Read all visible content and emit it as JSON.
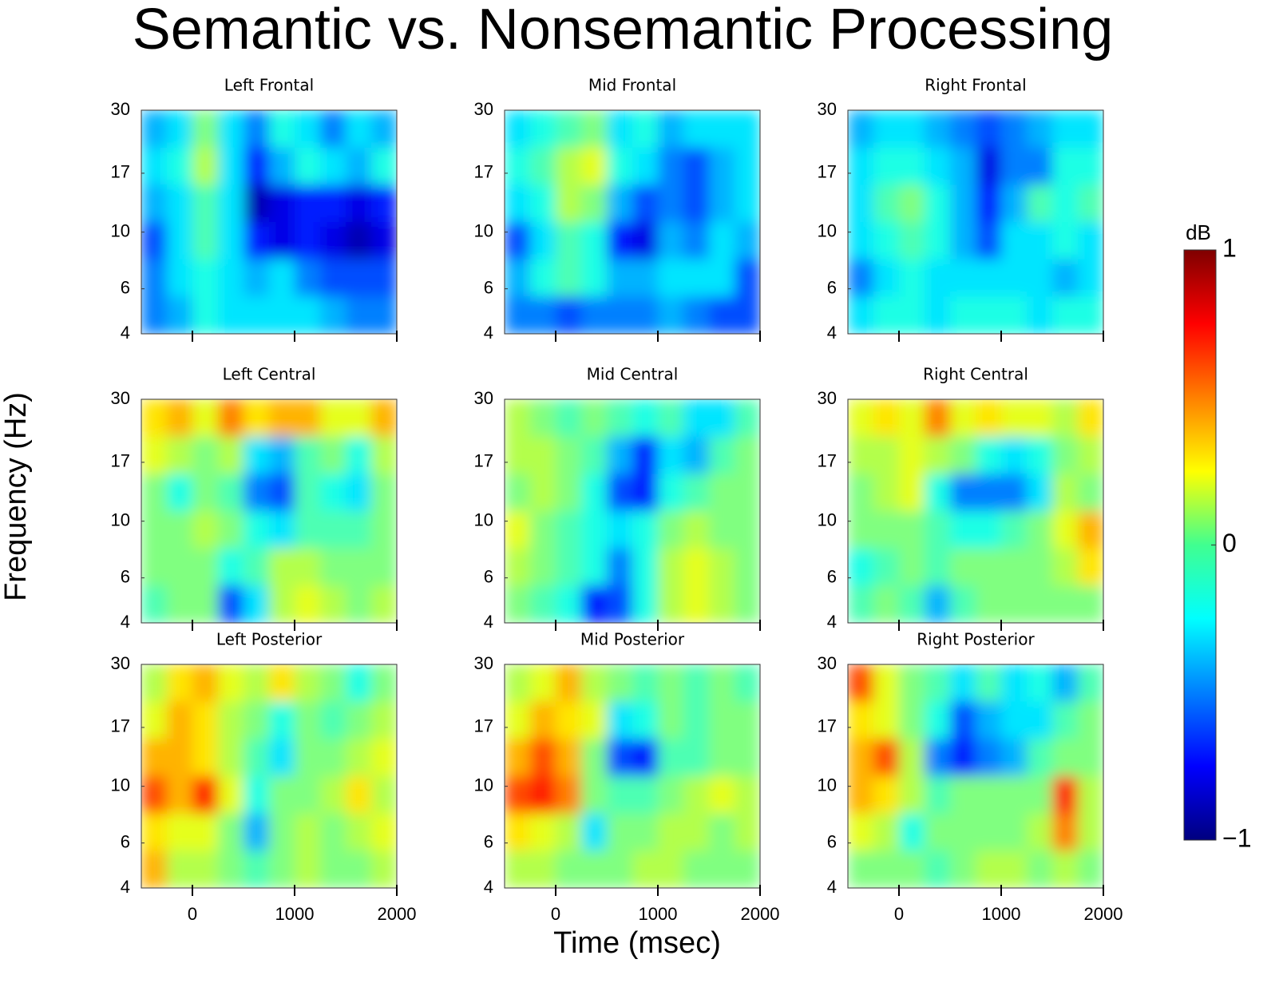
{
  "title": "Semantic vs. Nonsemantic Processing",
  "xlabel": "Time (msec)",
  "ylabel": "Frequency (Hz)",
  "colorbar": {
    "label": "dB",
    "lim": [
      -1,
      1
    ],
    "ticks": [
      {
        "value": -1,
        "label": "−1"
      },
      0,
      1
    ]
  },
  "chart_data": [
    {
      "type": "heatmap",
      "title": "Left Frontal",
      "xlim": [
        -500,
        2000
      ],
      "xticks": [
        0,
        1000,
        2000
      ],
      "ylim": [
        4,
        30
      ],
      "yticks": [
        4,
        6,
        10,
        17,
        30
      ],
      "ylog": true,
      "values": [
        [
          -0.4,
          -0.3,
          0,
          -0.3,
          -0.5,
          -0.2,
          -0.3,
          -0.5,
          -0.3,
          -0.4
        ],
        [
          -0.3,
          -0.2,
          0.1,
          -0.3,
          -0.7,
          -0.4,
          -0.2,
          -0.3,
          -0.4,
          -0.2
        ],
        [
          -0.4,
          -0.3,
          -0.1,
          -0.3,
          -0.9,
          -0.8,
          -0.7,
          -0.7,
          -0.8,
          -0.7
        ],
        [
          -0.6,
          -0.3,
          -0.1,
          -0.3,
          -0.7,
          -0.8,
          -0.7,
          -0.8,
          -0.9,
          -0.8
        ],
        [
          -0.5,
          -0.3,
          -0.2,
          -0.3,
          -0.4,
          -0.3,
          -0.5,
          -0.6,
          -0.6,
          -0.6
        ],
        [
          -0.5,
          -0.4,
          -0.2,
          -0.3,
          -0.3,
          -0.3,
          -0.3,
          -0.4,
          -0.5,
          -0.5
        ]
      ]
    },
    {
      "type": "heatmap",
      "title": "Mid Frontal",
      "xlim": [
        -500,
        2000
      ],
      "xticks": [
        0,
        1000,
        2000
      ],
      "ylim": [
        4,
        30
      ],
      "yticks": [
        4,
        6,
        10,
        17,
        30
      ],
      "ylog": true,
      "values": [
        [
          -0.3,
          -0.2,
          -0.1,
          0,
          -0.3,
          -0.2,
          -0.4,
          -0.3,
          -0.3,
          -0.3
        ],
        [
          -0.2,
          -0.1,
          0.1,
          0.2,
          -0.2,
          -0.3,
          -0.5,
          -0.6,
          -0.4,
          -0.3
        ],
        [
          -0.3,
          -0.2,
          0.1,
          0,
          -0.4,
          -0.6,
          -0.5,
          -0.6,
          -0.4,
          -0.3
        ],
        [
          -0.6,
          -0.3,
          -0.1,
          -0.2,
          -0.7,
          -0.8,
          -0.4,
          -0.5,
          -0.3,
          -0.4
        ],
        [
          -0.4,
          -0.2,
          -0.1,
          -0.2,
          -0.4,
          -0.4,
          -0.3,
          -0.3,
          -0.3,
          -0.6
        ],
        [
          -0.5,
          -0.5,
          -0.6,
          -0.5,
          -0.5,
          -0.5,
          -0.4,
          -0.5,
          -0.6,
          -0.6
        ]
      ]
    },
    {
      "type": "heatmap",
      "title": "Right Frontal",
      "xlim": [
        -500,
        2000
      ],
      "xticks": [
        0,
        1000,
        2000
      ],
      "ylim": [
        4,
        30
      ],
      "yticks": [
        4,
        6,
        10,
        17,
        30
      ],
      "ylog": true,
      "values": [
        [
          -0.4,
          -0.3,
          -0.3,
          -0.4,
          -0.5,
          -0.6,
          -0.5,
          -0.4,
          -0.3,
          -0.3
        ],
        [
          -0.3,
          -0.2,
          -0.2,
          -0.3,
          -0.4,
          -0.8,
          -0.5,
          -0.5,
          -0.2,
          -0.2
        ],
        [
          -0.3,
          -0.1,
          0,
          -0.2,
          -0.4,
          -0.7,
          -0.4,
          -0.1,
          -0.2,
          -0.1
        ],
        [
          -0.3,
          -0.2,
          -0.1,
          -0.2,
          -0.4,
          -0.6,
          -0.3,
          -0.3,
          -0.2,
          -0.3
        ],
        [
          -0.5,
          -0.3,
          -0.2,
          -0.3,
          -0.3,
          -0.3,
          -0.3,
          -0.3,
          -0.4,
          -0.3
        ],
        [
          -0.3,
          -0.2,
          -0.2,
          -0.3,
          -0.2,
          -0.2,
          -0.2,
          -0.3,
          -0.2,
          -0.2
        ]
      ]
    },
    {
      "type": "heatmap",
      "title": "Left Central",
      "xlim": [
        -500,
        2000
      ],
      "xticks": [
        0,
        1000,
        2000
      ],
      "ylim": [
        4,
        30
      ],
      "yticks": [
        4,
        6,
        10,
        17,
        30
      ],
      "ylog": true,
      "values": [
        [
          0.3,
          0.4,
          0.2,
          0.5,
          0.3,
          0.4,
          0.4,
          0.2,
          0.2,
          0.4
        ],
        [
          0.2,
          0.1,
          0,
          0.1,
          -0.3,
          -0.4,
          -0.1,
          0,
          -0.2,
          0.1
        ],
        [
          0,
          -0.2,
          0,
          -0.1,
          -0.5,
          -0.6,
          -0.1,
          -0.2,
          -0.3,
          0
        ],
        [
          0,
          0,
          0.1,
          0,
          -0.2,
          -0.3,
          -0.1,
          -0.1,
          -0.1,
          0
        ],
        [
          0,
          0,
          0,
          -0.2,
          -0.1,
          0.1,
          0.1,
          0,
          0,
          0
        ],
        [
          -0.1,
          0,
          0,
          -0.6,
          -0.3,
          0.1,
          0.2,
          0.1,
          0,
          0.1
        ]
      ]
    },
    {
      "type": "heatmap",
      "title": "Mid Central",
      "xlim": [
        -500,
        2000
      ],
      "xticks": [
        0,
        1000,
        2000
      ],
      "ylim": [
        4,
        30
      ],
      "yticks": [
        4,
        6,
        10,
        17,
        30
      ],
      "ylog": true,
      "values": [
        [
          0.1,
          0,
          -0.1,
          0,
          -0.1,
          -0.2,
          -0.1,
          -0.3,
          -0.3,
          -0.1
        ],
        [
          0.1,
          0.1,
          0,
          -0.1,
          -0.4,
          -0.7,
          -0.3,
          -0.4,
          -0.1,
          0
        ],
        [
          0,
          0.1,
          0,
          -0.2,
          -0.6,
          -0.7,
          -0.2,
          -0.1,
          0,
          0
        ],
        [
          0.2,
          0,
          -0.1,
          -0.2,
          -0.3,
          -0.2,
          0,
          0.1,
          0,
          0
        ],
        [
          0.1,
          0,
          -0.1,
          -0.2,
          -0.5,
          -0.2,
          0.1,
          0.2,
          0.1,
          0
        ],
        [
          0,
          -0.1,
          -0.2,
          -0.7,
          -0.6,
          -0.2,
          0.1,
          0.2,
          0.1,
          0
        ]
      ]
    },
    {
      "type": "heatmap",
      "title": "Right Central",
      "xlim": [
        -500,
        2000
      ],
      "xticks": [
        0,
        1000,
        2000
      ],
      "ylim": [
        4,
        30
      ],
      "yticks": [
        4,
        6,
        10,
        17,
        30
      ],
      "ylog": true,
      "values": [
        [
          0.2,
          0.3,
          0.2,
          0.5,
          0.2,
          0.3,
          0.2,
          0.2,
          0.1,
          0.3
        ],
        [
          0.1,
          0.1,
          0.2,
          0.1,
          0,
          -0.2,
          -0.3,
          -0.2,
          0,
          0.1
        ],
        [
          0,
          0.1,
          0.2,
          -0.2,
          -0.5,
          -0.5,
          -0.5,
          -0.3,
          0.1,
          0
        ],
        [
          0,
          0,
          0,
          -0.1,
          -0.2,
          -0.2,
          -0.1,
          0,
          0.2,
          0.4
        ],
        [
          -0.2,
          -0.1,
          0,
          -0.1,
          0,
          0,
          0,
          0,
          0.1,
          0.3
        ],
        [
          -0.1,
          0,
          -0.1,
          -0.4,
          -0.1,
          0,
          0,
          0,
          0,
          0
        ]
      ]
    },
    {
      "type": "heatmap",
      "title": "Left Posterior",
      "xlim": [
        -500,
        2000
      ],
      "xticks": [
        0,
        1000,
        2000
      ],
      "ylim": [
        4,
        30
      ],
      "yticks": [
        4,
        6,
        10,
        17,
        30
      ],
      "ylog": true,
      "values": [
        [
          0.1,
          0.3,
          0.4,
          0.2,
          0.1,
          0.3,
          0.1,
          0,
          -0.2,
          0
        ],
        [
          0.2,
          0.4,
          0.3,
          0.1,
          0,
          -0.2,
          0,
          -0.1,
          0,
          0.1
        ],
        [
          0.4,
          0.4,
          0.3,
          0.1,
          -0.1,
          -0.3,
          0,
          0,
          0.1,
          0.2
        ],
        [
          0.6,
          0.4,
          0.7,
          0.2,
          -0.2,
          0,
          0,
          0.1,
          0.3,
          0.1
        ],
        [
          0.3,
          0.2,
          0.2,
          0,
          -0.4,
          0,
          0.1,
          0,
          0.1,
          0.2
        ],
        [
          0.4,
          0.1,
          0.1,
          0,
          -0.1,
          0,
          0.1,
          0,
          0,
          0.1
        ]
      ]
    },
    {
      "type": "heatmap",
      "title": "Mid Posterior",
      "xlim": [
        -500,
        2000
      ],
      "xticks": [
        0,
        1000,
        2000
      ],
      "ylim": [
        4,
        30
      ],
      "yticks": [
        4,
        6,
        10,
        17,
        30
      ],
      "ylog": true,
      "values": [
        [
          0.1,
          0.2,
          0.4,
          0.1,
          0,
          -0.1,
          0,
          -0.1,
          0,
          -0.1
        ],
        [
          0.2,
          0.4,
          0.3,
          0.2,
          -0.3,
          -0.2,
          0,
          -0.1,
          0,
          0
        ],
        [
          0.4,
          0.6,
          0.4,
          0,
          -0.6,
          -0.7,
          -0.1,
          -0.1,
          0,
          0
        ],
        [
          0.6,
          0.7,
          0.5,
          0,
          -0.1,
          -0.1,
          0,
          0.1,
          0.2,
          0.1
        ],
        [
          0.3,
          0.2,
          0.1,
          -0.3,
          0,
          0,
          0.1,
          0.1,
          0,
          0.1
        ],
        [
          0.1,
          0.1,
          0,
          0,
          0,
          0.1,
          0.1,
          0,
          0,
          0
        ]
      ]
    },
    {
      "type": "heatmap",
      "title": "Right Posterior",
      "xlim": [
        -500,
        2000
      ],
      "xticks": [
        0,
        1000,
        2000
      ],
      "ylim": [
        4,
        30
      ],
      "yticks": [
        4,
        6,
        10,
        17,
        30
      ],
      "ylog": true,
      "values": [
        [
          0.6,
          0.2,
          0,
          -0.1,
          -0.3,
          -0.1,
          -0.3,
          -0.2,
          -0.4,
          -0.1
        ],
        [
          0.3,
          0.2,
          0,
          -0.2,
          -0.6,
          -0.4,
          -0.3,
          -0.3,
          -0.1,
          0
        ],
        [
          0.4,
          0.6,
          0.1,
          -0.5,
          -0.7,
          -0.5,
          -0.4,
          -0.1,
          0,
          0
        ],
        [
          0.4,
          0.3,
          0.1,
          -0.1,
          0,
          0,
          0,
          0,
          0.7,
          0.1
        ],
        [
          0.2,
          0.1,
          -0.2,
          0,
          0,
          0,
          0,
          0.1,
          0.5,
          0.1
        ],
        [
          0,
          0,
          0,
          -0.1,
          0,
          0.1,
          0.1,
          0,
          0.1,
          0
        ]
      ]
    }
  ]
}
